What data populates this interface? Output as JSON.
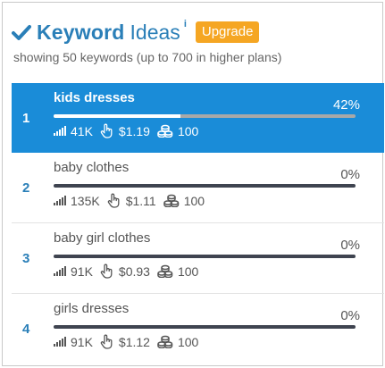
{
  "header": {
    "title_strong": "Keyword",
    "title_light": "Ideas",
    "info": "i",
    "upgrade_label": "Upgrade",
    "subtitle": "showing 50 keywords (up to 700 in higher plans)"
  },
  "keywords": [
    {
      "rank": "1",
      "name": "kids dresses",
      "percent": "42%",
      "progress": 0.42,
      "volume": "41K",
      "cpc": "$1.19",
      "competition": "100",
      "active": true
    },
    {
      "rank": "2",
      "name": "baby clothes",
      "percent": "0%",
      "progress": 0,
      "volume": "135K",
      "cpc": "$1.11",
      "competition": "100",
      "active": false
    },
    {
      "rank": "3",
      "name": "baby girl clothes",
      "percent": "0%",
      "progress": 0,
      "volume": "91K",
      "cpc": "$0.93",
      "competition": "100",
      "active": false
    },
    {
      "rank": "4",
      "name": "girls dresses",
      "percent": "0%",
      "progress": 0,
      "volume": "91K",
      "cpc": "$1.12",
      "competition": "100",
      "active": false
    }
  ],
  "icons": {
    "check": "check-icon",
    "volume": "signal-bars-icon",
    "cpc": "hand-pointer-icon",
    "competition": "coins-stack-icon"
  },
  "colors": {
    "accent": "#2a7fb8",
    "active_row": "#1a8cd8",
    "upgrade": "#f5a623",
    "bar_track": "#3f4450"
  }
}
